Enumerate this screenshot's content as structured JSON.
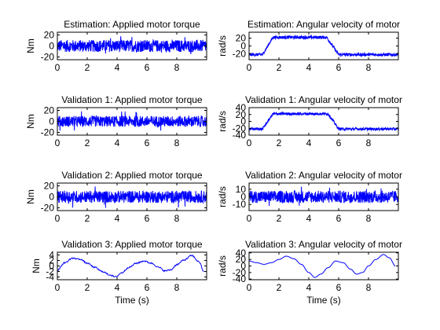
{
  "chart_data": [
    {
      "type": "line",
      "title": "Estimation: Applied motor torque",
      "xlabel": "",
      "ylabel": "Nm",
      "xlim": [
        0,
        10
      ],
      "ylim": [
        -25,
        25
      ],
      "xticks": [
        "0",
        "2",
        "4",
        "6",
        "8"
      ],
      "yticks": [
        "20",
        "0",
        "-20"
      ],
      "grid": false,
      "series": [
        {
          "color": "#0000ff",
          "signal": "noise",
          "x": [
            0,
            10
          ],
          "amplitude": 11,
          "offset": 0
        }
      ]
    },
    {
      "type": "line",
      "title": "Estimation: Angular velocity of motor",
      "xlabel": "",
      "ylabel": "rad/s",
      "xlim": [
        0,
        10
      ],
      "ylim": [
        -35,
        35
      ],
      "xticks": [
        "0",
        "2",
        "4",
        "6",
        "8"
      ],
      "yticks": [
        "20",
        "0",
        "-20"
      ],
      "grid": false,
      "series": [
        {
          "color": "#0000ff",
          "signal": "plateau",
          "x": [
            0,
            10
          ],
          "low": -22,
          "high": 22,
          "rise": [
            0.9,
            1.6
          ],
          "fall": [
            5.2,
            6.0
          ],
          "noise": 4
        }
      ]
    },
    {
      "type": "line",
      "title": "Validation 1: Applied motor torque",
      "xlabel": "",
      "ylabel": "Nm",
      "xlim": [
        0,
        10
      ],
      "ylim": [
        -25,
        25
      ],
      "xticks": [
        "0",
        "2",
        "4",
        "6",
        "8"
      ],
      "yticks": [
        "20",
        "0",
        "-20"
      ],
      "grid": false,
      "series": [
        {
          "color": "#0000ff",
          "signal": "noise",
          "x": [
            0,
            10
          ],
          "amplitude": 10,
          "offset": 0
        }
      ]
    },
    {
      "type": "line",
      "title": "Validation 1: Angular velocity of motor",
      "xlabel": "",
      "ylabel": "rad/s",
      "xlim": [
        0,
        10
      ],
      "ylim": [
        -40,
        40
      ],
      "xticks": [
        "0",
        "2",
        "4",
        "6",
        "8"
      ],
      "yticks": [
        "40",
        "20",
        "0",
        "-20",
        "-40"
      ],
      "grid": false,
      "series": [
        {
          "color": "#0000ff",
          "signal": "plateau",
          "x": [
            0,
            10
          ],
          "low": -22,
          "high": 22,
          "rise": [
            0.9,
            1.6
          ],
          "fall": [
            5.3,
            6.0
          ],
          "noise": 4
        }
      ]
    },
    {
      "type": "line",
      "title": "Validation 2: Applied motor torque",
      "xlabel": "",
      "ylabel": "Nm",
      "xlim": [
        0,
        10
      ],
      "ylim": [
        -25,
        25
      ],
      "xticks": [
        "0",
        "2",
        "4",
        "6",
        "8"
      ],
      "yticks": [
        "20",
        "0",
        "-20"
      ],
      "grid": false,
      "series": [
        {
          "color": "#0000ff",
          "signal": "noise",
          "x": [
            0,
            10
          ],
          "amplitude": 11,
          "offset": 0
        }
      ]
    },
    {
      "type": "line",
      "title": "Validation 2: Angular velocity of motor",
      "xlabel": "",
      "ylabel": "rad/s",
      "xlim": [
        0,
        10
      ],
      "ylim": [
        -18,
        18
      ],
      "xticks": [
        "0",
        "2",
        "4",
        "6",
        "8"
      ],
      "yticks": [
        "10",
        "0",
        "-10"
      ],
      "grid": false,
      "series": [
        {
          "color": "#0000ff",
          "signal": "noise",
          "x": [
            0,
            10
          ],
          "amplitude": 8,
          "offset": 0
        }
      ]
    },
    {
      "type": "line",
      "title": "Validation 3: Applied motor torque",
      "xlabel": "Time (s)",
      "ylabel": "Nm",
      "xlim": [
        0,
        10
      ],
      "ylim": [
        -5,
        5
      ],
      "xticks": [
        "0",
        "2",
        "4",
        "6",
        "8"
      ],
      "yticks": [
        "4",
        "2",
        "0",
        "-2",
        "-4"
      ],
      "grid": false,
      "series": [
        {
          "color": "#0000ff",
          "signal": "points",
          "jitter": 0.25,
          "x": [
            0,
            0.5,
            1.0,
            1.5,
            2.0,
            2.5,
            3.0,
            3.5,
            3.9,
            4.3,
            4.8,
            5.3,
            5.8,
            6.3,
            6.8,
            7.2,
            7.6,
            8.0,
            8.5,
            9.0,
            9.5,
            9.8
          ],
          "y": [
            -1.5,
            1.2,
            2.8,
            2.5,
            1.0,
            -0.5,
            -2.0,
            -3.2,
            -4.0,
            -2.5,
            -0.5,
            1.0,
            1.8,
            1.0,
            -0.5,
            -1.8,
            -1.4,
            0.5,
            2.2,
            3.8,
            1.5,
            -2.0
          ]
        }
      ]
    },
    {
      "type": "line",
      "title": "Validation 3: Angular velocity of motor",
      "xlabel": "Time (s)",
      "ylabel": "rad/s",
      "xlim": [
        0,
        10
      ],
      "ylim": [
        -42,
        42
      ],
      "xticks": [
        "0",
        "2",
        "4",
        "6",
        "8"
      ],
      "yticks": [
        "40",
        "20",
        "0",
        "-20",
        "-40"
      ],
      "grid": false,
      "series": [
        {
          "color": "#0000ff",
          "signal": "points",
          "jitter": 0,
          "x": [
            0,
            0.5,
            1.0,
            1.5,
            2.0,
            2.5,
            3.0,
            3.5,
            4.0,
            4.4,
            4.8,
            5.3,
            5.8,
            6.3,
            6.8,
            7.2,
            7.6,
            8.0,
            8.5,
            9.0,
            9.4,
            9.8
          ],
          "y": [
            15,
            10,
            5,
            10,
            20,
            30,
            22,
            5,
            -20,
            -35,
            -25,
            -5,
            15,
            10,
            -10,
            -25,
            -20,
            0,
            20,
            35,
            25,
            0
          ]
        }
      ]
    }
  ]
}
